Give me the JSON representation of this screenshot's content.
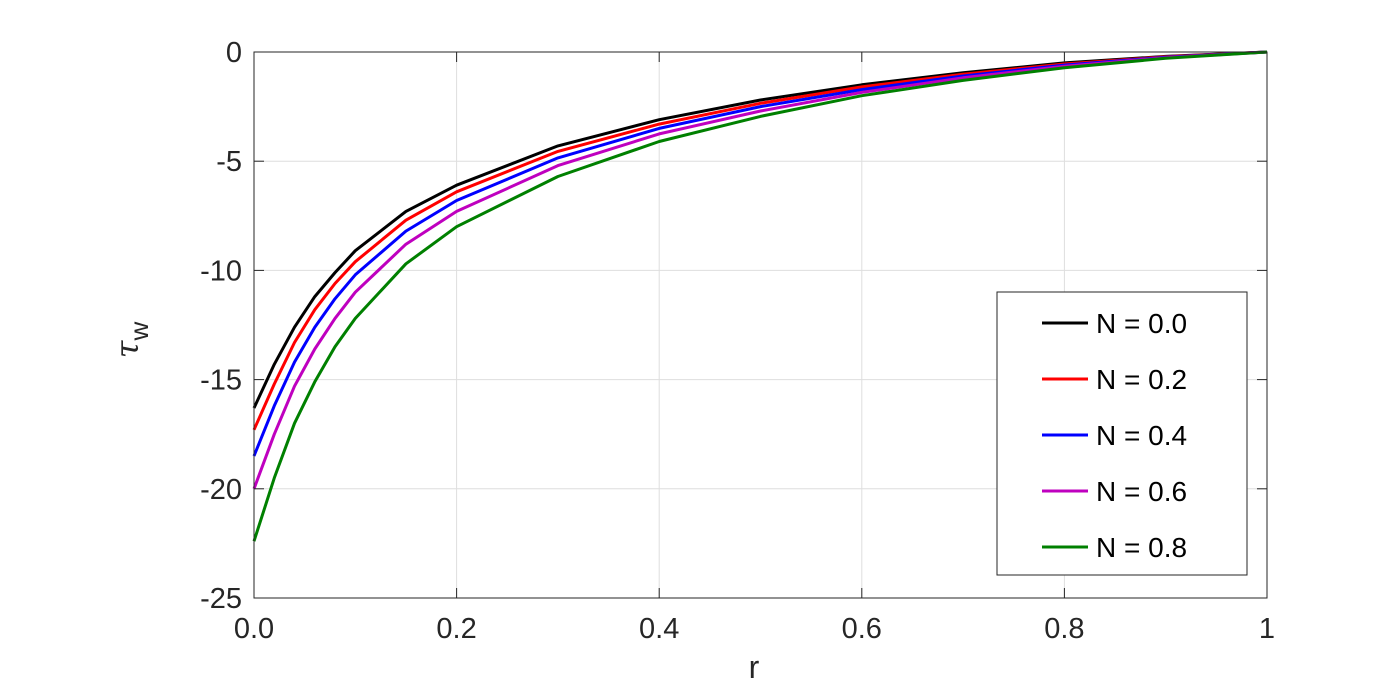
{
  "chart_data": {
    "type": "line",
    "xlabel": "r",
    "ylabel_symbol": "τ",
    "ylabel_subscript": "w",
    "xlim": [
      0,
      1
    ],
    "ylim": [
      -25,
      0
    ],
    "x_ticks": [
      0,
      0.2,
      0.4,
      0.6,
      0.8,
      1
    ],
    "x_tick_labels": [
      "0.0",
      "0.2",
      "0.4",
      "0.6",
      "0.8",
      "1"
    ],
    "y_ticks": [
      0,
      -5,
      -10,
      -15,
      -20,
      -25
    ],
    "y_tick_labels": [
      "0",
      "-5",
      "-10",
      "-15",
      "-20",
      "-25"
    ],
    "grid": true,
    "legend_position": "lower-right",
    "x": [
      0.0,
      0.02,
      0.04,
      0.06,
      0.08,
      0.1,
      0.15,
      0.2,
      0.3,
      0.4,
      0.5,
      0.6,
      0.7,
      0.8,
      0.9,
      1.0
    ],
    "series": [
      {
        "name": "N = 0.0",
        "color": "#000000",
        "values": [
          -16.3,
          -14.3,
          -12.6,
          -11.2,
          -10.1,
          -9.1,
          -7.3,
          -6.1,
          -4.3,
          -3.1,
          -2.2,
          -1.5,
          -0.95,
          -0.5,
          -0.2,
          0
        ]
      },
      {
        "name": "N = 0.2",
        "color": "#ff0000",
        "values": [
          -17.3,
          -15.2,
          -13.3,
          -11.8,
          -10.6,
          -9.6,
          -7.7,
          -6.4,
          -4.55,
          -3.3,
          -2.35,
          -1.6,
          -1.02,
          -0.55,
          -0.22,
          0
        ]
      },
      {
        "name": "N = 0.4",
        "color": "#0000ff",
        "values": [
          -18.5,
          -16.2,
          -14.2,
          -12.6,
          -11.3,
          -10.2,
          -8.2,
          -6.8,
          -4.85,
          -3.5,
          -2.5,
          -1.72,
          -1.1,
          -0.6,
          -0.24,
          0
        ]
      },
      {
        "name": "N = 0.6",
        "color": "#bf00bf",
        "values": [
          -20.0,
          -17.5,
          -15.3,
          -13.6,
          -12.2,
          -11.0,
          -8.8,
          -7.3,
          -5.2,
          -3.75,
          -2.7,
          -1.85,
          -1.18,
          -0.65,
          -0.26,
          0
        ]
      },
      {
        "name": "N = 0.8",
        "color": "#008000",
        "values": [
          -22.4,
          -19.5,
          -17.0,
          -15.1,
          -13.5,
          -12.2,
          -9.7,
          -8.0,
          -5.7,
          -4.1,
          -2.95,
          -2.0,
          -1.3,
          -0.72,
          -0.29,
          0
        ]
      }
    ]
  }
}
